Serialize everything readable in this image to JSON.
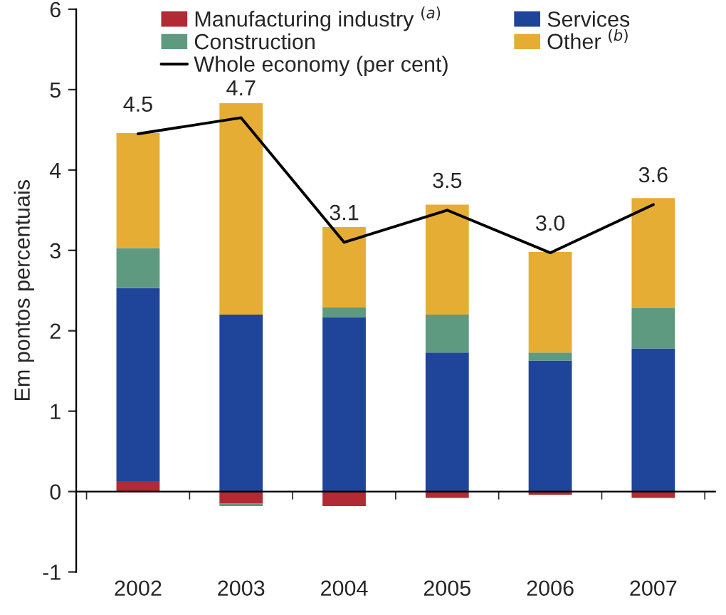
{
  "chart_data": {
    "type": "bar",
    "stacked": true,
    "ylabel": "Em pontos percentuais",
    "categories": [
      "2002",
      "2003",
      "2004",
      "2005",
      "2006",
      "2007"
    ],
    "series": [
      {
        "name": "Manufacturing industry $^{(a)}$",
        "color": "#b22a33",
        "values": [
          0.13,
          -0.15,
          -0.18,
          -0.08,
          -0.04,
          -0.08
        ]
      },
      {
        "name": "Services",
        "color": "#1f459b",
        "values": [
          2.4,
          2.2,
          2.17,
          1.73,
          1.63,
          1.78
        ]
      },
      {
        "name": "Construction",
        "color": "#5e9a80",
        "values": [
          0.5,
          -0.03,
          0.12,
          0.47,
          0.1,
          0.5
        ]
      },
      {
        "name": "Other $^{(b)}$",
        "color": "#e6ad35",
        "values": [
          1.43,
          2.63,
          1.0,
          1.37,
          1.25,
          1.37
        ]
      },
      {
        "name": "Whole economy (per cent)",
        "type": "line",
        "color": "#000000",
        "values": [
          4.45,
          4.65,
          3.1,
          3.5,
          2.97,
          3.57
        ],
        "value_labels": [
          "4.5",
          "4.7",
          "3.1",
          "3.5",
          "3.0",
          "3.6"
        ]
      }
    ],
    "ylim": [
      -1,
      6
    ],
    "yticks": [
      -1,
      0,
      1,
      2,
      3,
      4,
      5,
      6
    ],
    "legend": "top",
    "marker": "none",
    "line_style": "solid"
  }
}
